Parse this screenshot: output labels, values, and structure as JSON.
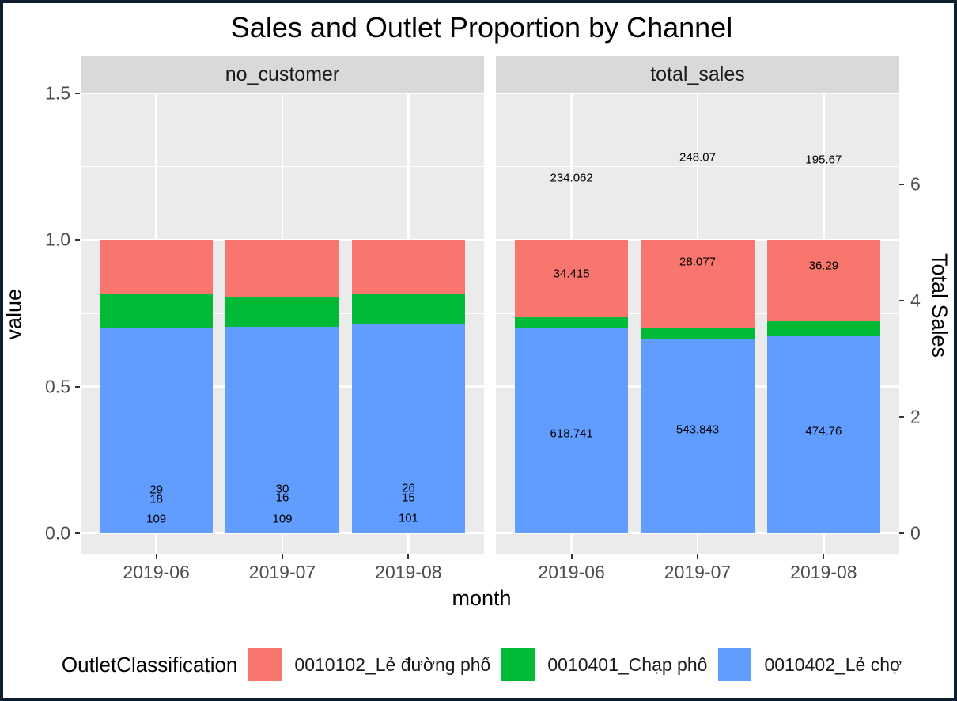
{
  "title": "Sales and Outlet Proportion by Channel",
  "axes": {
    "left": {
      "title": "value",
      "ticks": [
        "0.0",
        "0.5",
        "1.0",
        "1.5"
      ],
      "tick_values": [
        0,
        0.5,
        1.0,
        1.5
      ],
      "minor_values": [
        0.25,
        0.75,
        1.25
      ]
    },
    "right": {
      "title": "Total Sales",
      "ticks": [
        "0",
        "2",
        "4",
        "6"
      ],
      "tick_values": [
        0,
        2,
        4,
        6
      ]
    },
    "bottom": {
      "title": "month",
      "categories": [
        "2019-06",
        "2019-07",
        "2019-08"
      ]
    }
  },
  "legend": {
    "title": "OutletClassification",
    "items": [
      {
        "label": "0010102_Lẻ đường phố",
        "color": "#F8766D"
      },
      {
        "label": "0010401_Chạp phô",
        "color": "#00BA38"
      },
      {
        "label": "0010402_Lẻ chợ",
        "color": "#619CFF"
      }
    ]
  },
  "chart_data": {
    "type": "bar",
    "subtype": "stacked-fill-proportion",
    "categories": [
      "2019-06",
      "2019-07",
      "2019-08"
    ],
    "value_axis_range": [
      0,
      1.5
    ],
    "secondary_axis_range": [
      0,
      6
    ],
    "secondary_axis_units_per_value": 5.05,
    "grid": true,
    "legend_position": "bottom",
    "facets": [
      {
        "name": "no_customer",
        "series": [
          {
            "name": "0010102_Lẻ đường phố",
            "color": "#F8766D",
            "values": [
              29,
              30,
              26
            ]
          },
          {
            "name": "0010401_Chạp phô",
            "color": "#00BA38",
            "values": [
              18,
              16,
              15
            ]
          },
          {
            "name": "0010402_Lẻ chợ",
            "color": "#619CFF",
            "values": [
              109,
              109,
              101
            ]
          }
        ],
        "bar_labels": [
          {
            "text": "29",
            "cat": 0,
            "v": 0.148
          },
          {
            "text": "18",
            "cat": 0,
            "v": 0.116
          },
          {
            "text": "109",
            "cat": 0,
            "v": 0.0485
          },
          {
            "text": "30",
            "cat": 1,
            "v": 0.152
          },
          {
            "text": "16",
            "cat": 1,
            "v": 0.12
          },
          {
            "text": "109",
            "cat": 1,
            "v": 0.0485
          },
          {
            "text": "26",
            "cat": 2,
            "v": 0.154
          },
          {
            "text": "15",
            "cat": 2,
            "v": 0.121
          },
          {
            "text": "101",
            "cat": 2,
            "v": 0.051
          }
        ]
      },
      {
        "name": "total_sales",
        "series": [
          {
            "name": "0010102_Lẻ đường phố",
            "color": "#F8766D",
            "values": [
              234.062,
              248.07,
              195.67
            ]
          },
          {
            "name": "0010401_Chạp phô",
            "color": "#00BA38",
            "values": [
              34.415,
              28.077,
              36.29
            ]
          },
          {
            "name": "0010402_Lẻ chợ",
            "color": "#619CFF",
            "values": [
              618.741,
              543.843,
              474.76
            ]
          }
        ],
        "bar_labels": [
          {
            "text": "234.062",
            "cat": 0,
            "v": 1.209
          },
          {
            "text": "34.415",
            "cat": 0,
            "v": 0.884
          },
          {
            "text": "618.741",
            "cat": 0,
            "v": 0.34
          },
          {
            "text": "248.07",
            "cat": 1,
            "v": 1.281
          },
          {
            "text": "28.077",
            "cat": 1,
            "v": 0.925
          },
          {
            "text": "543.843",
            "cat": 1,
            "v": 0.353
          },
          {
            "text": "195.67",
            "cat": 2,
            "v": 1.272
          },
          {
            "text": "36.29",
            "cat": 2,
            "v": 0.911
          },
          {
            "text": "474.76",
            "cat": 2,
            "v": 0.347
          }
        ]
      }
    ]
  }
}
